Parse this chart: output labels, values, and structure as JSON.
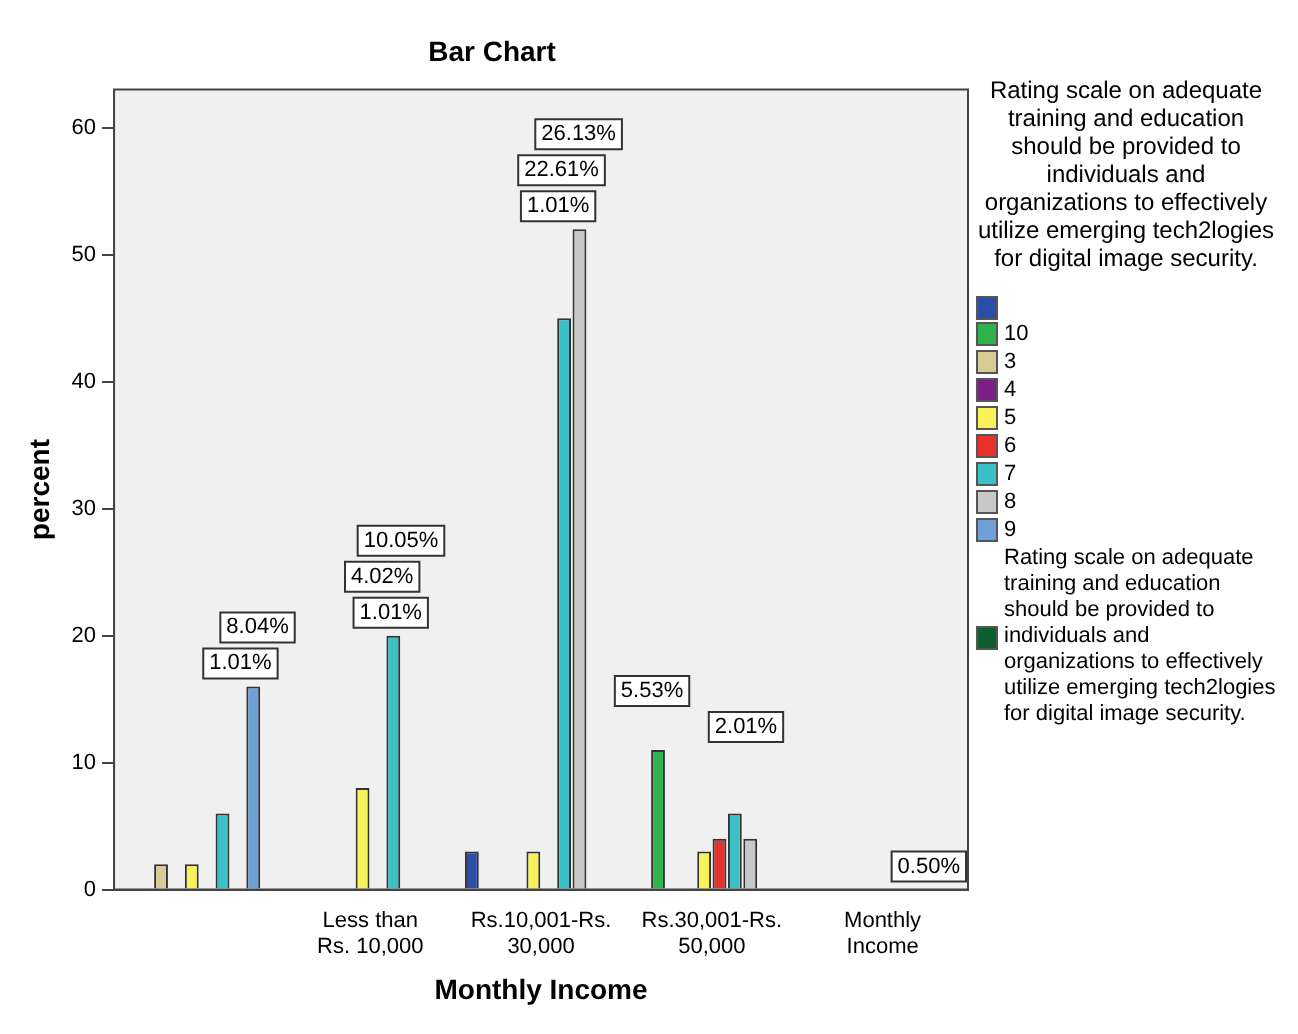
{
  "chart_data": {
    "type": "bar",
    "title": "Bar Chart",
    "xlabel": "Monthly Income",
    "ylabel": "percent",
    "legend_title": "Rating scale on adequate training and education should be provided to individuals and organizations to effectively utilize emerging tech2logies for digital image security.",
    "categories": [
      null,
      "Less than Rs. 10,000",
      "Rs.10,001-Rs. 30,000",
      "Rs.30,001-Rs. 50,000",
      "Monthly Income"
    ],
    "series": [
      {
        "color": "#2b4ea8",
        "values": [
          null,
          null,
          3,
          null,
          null
        ]
      },
      {
        "name": "10",
        "color": "#2fb34a",
        "values": [
          null,
          null,
          null,
          11,
          null
        ]
      },
      {
        "name": "3",
        "color": "#d6cc96",
        "values": [
          2,
          null,
          null,
          null,
          null
        ]
      },
      {
        "name": "4",
        "color": "#7a1f84",
        "values": [
          null,
          null,
          null,
          null,
          null
        ]
      },
      {
        "name": "5",
        "color": "#f7f25a",
        "values": [
          2,
          8,
          3,
          3,
          null
        ]
      },
      {
        "name": "6",
        "color": "#e8312b",
        "values": [
          null,
          null,
          null,
          4,
          null
        ]
      },
      {
        "name": "7",
        "color": "#3cc0c8",
        "values": [
          6,
          20,
          45,
          6,
          null
        ]
      },
      {
        "name": "8",
        "color": "#c8c8c8",
        "values": [
          null,
          null,
          52,
          4,
          null
        ]
      },
      {
        "name": "9",
        "color": "#6fa0d8",
        "values": [
          16,
          null,
          null,
          null,
          null
        ]
      },
      {
        "name": "Rating scale on adequate training and education should be provided to individuals and organizations to effectively utilize emerging tech2logies for digital image security.",
        "color": "#0d5e2e",
        "values": [
          null,
          null,
          null,
          null,
          null
        ]
      }
    ],
    "ylim": [
      0,
      63
    ],
    "yticks": [
      0,
      10,
      20,
      30,
      40,
      50,
      60
    ],
    "grid": false,
    "legend": "right",
    "annotations": [
      "1.01%",
      "8.04%",
      "4.02%",
      "10.05%",
      "1.01%",
      "26.13%",
      "22.61%",
      "1.01%",
      "5.53%",
      "2.01%",
      "0.50%"
    ]
  }
}
